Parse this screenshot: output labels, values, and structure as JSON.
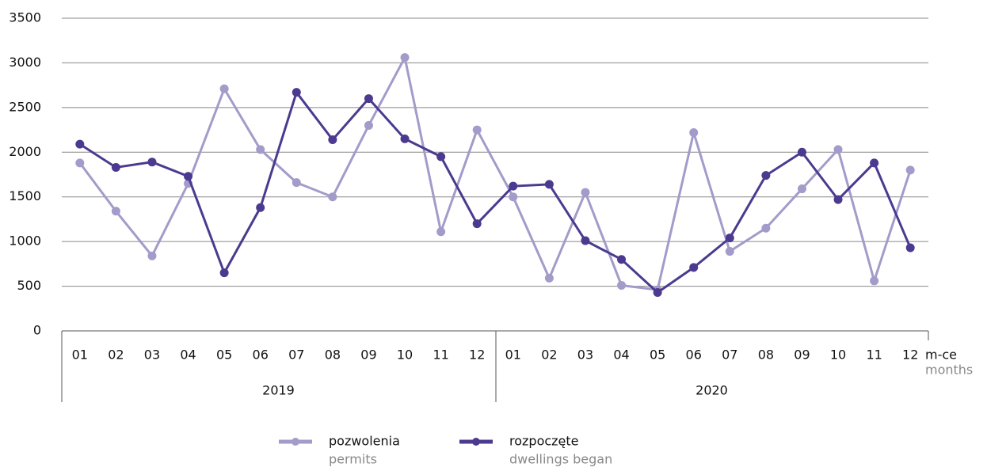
{
  "chart_data": {
    "type": "line",
    "categories": [
      "01",
      "02",
      "03",
      "04",
      "05",
      "06",
      "07",
      "08",
      "09",
      "10",
      "11",
      "12",
      "01",
      "02",
      "03",
      "04",
      "05",
      "06",
      "07",
      "08",
      "09",
      "10",
      "11",
      "12"
    ],
    "years": [
      "2019",
      "2020"
    ],
    "x_label": "m-ce",
    "x_label_en": "months",
    "series": [
      {
        "name": "pozwolenia",
        "name_en": "permits",
        "color": "#a39bc9",
        "values": [
          1880,
          1340,
          840,
          1650,
          2710,
          2030,
          1660,
          1500,
          2300,
          3060,
          1110,
          2250,
          1500,
          590,
          1550,
          510,
          460,
          2220,
          890,
          1150,
          1590,
          2030,
          560,
          1800
        ]
      },
      {
        "name": "rozpoczęte",
        "name_en": "dwellings began",
        "color": "#4b3a8f",
        "values": [
          2090,
          1830,
          1890,
          1730,
          650,
          1380,
          2670,
          2140,
          2600,
          2150,
          1950,
          1200,
          1620,
          1640,
          1010,
          800,
          430,
          710,
          1040,
          1740,
          2000,
          1470,
          1880,
          930
        ]
      }
    ],
    "ylim": [
      0,
      3500
    ],
    "yticks": [
      0,
      500,
      1000,
      1500,
      2000,
      2500,
      3000,
      3500
    ],
    "grid": true
  }
}
